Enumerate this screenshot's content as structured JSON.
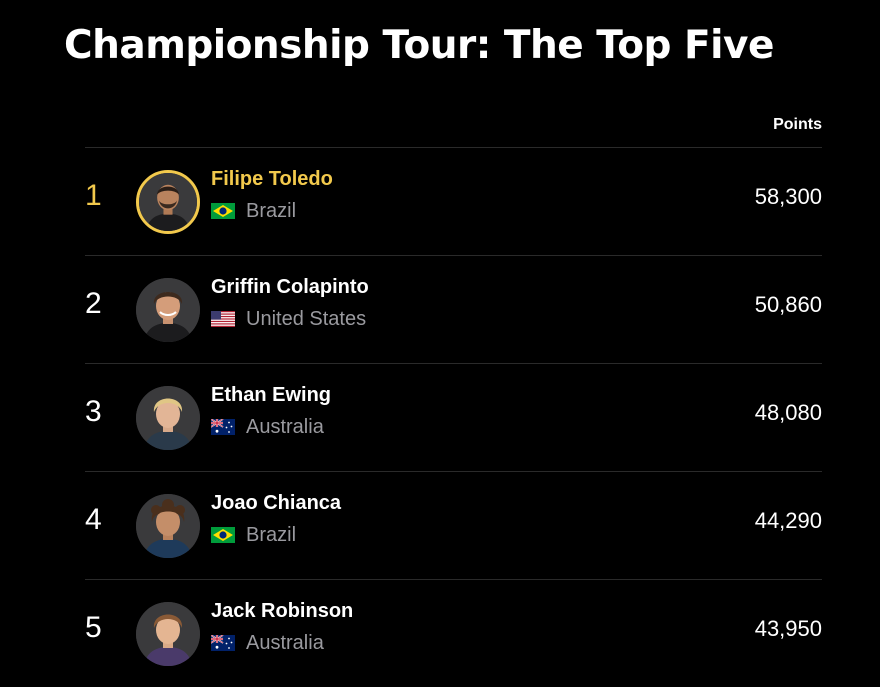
{
  "page": {
    "title": "Championship Tour: The Top Five"
  },
  "table": {
    "points_header": "Points"
  },
  "colors": {
    "leader_accent": "#f2c94c",
    "background": "#000000",
    "muted_text": "#9a9a9f"
  },
  "rankings": [
    {
      "rank": "1",
      "name": "Filipe Toledo",
      "country": "Brazil",
      "flag": "brazil-flag-icon",
      "points": "58,300",
      "leader": true
    },
    {
      "rank": "2",
      "name": "Griffin Colapinto",
      "country": "United States",
      "flag": "united-states-flag-icon",
      "points": "50,860",
      "leader": false
    },
    {
      "rank": "3",
      "name": "Ethan Ewing",
      "country": "Australia",
      "flag": "australia-flag-icon",
      "points": "48,080",
      "leader": false
    },
    {
      "rank": "4",
      "name": "Joao Chianca",
      "country": "Brazil",
      "flag": "brazil-flag-icon",
      "points": "44,290",
      "leader": false
    },
    {
      "rank": "5",
      "name": "Jack Robinson",
      "country": "Australia",
      "flag": "australia-flag-icon",
      "points": "43,950",
      "leader": false
    }
  ]
}
